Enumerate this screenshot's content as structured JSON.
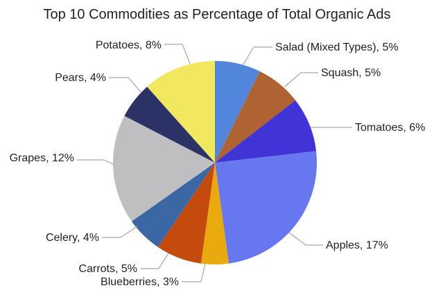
{
  "page": {
    "background_color": "#ffffff"
  },
  "chart_data": {
    "type": "pie",
    "title": "Top 10 Commodities as Percentage of Total Organic Ads",
    "unit": "%",
    "legend": "none",
    "start_angle_deg": 0,
    "direction": "clockwise",
    "label_style": "outside callouts with leader lines",
    "leader_line_color": "#a6a6a6",
    "text_color": "#1f1f1f",
    "slices": [
      {
        "label": "Salad (Mixed Types)",
        "value": 5,
        "callout": "Salad (Mixed Types), 5%",
        "color": "#5186dc"
      },
      {
        "label": "Squash",
        "value": 5,
        "callout": "Squash, 5%",
        "color": "#af6333"
      },
      {
        "label": "Tomatoes",
        "value": 6,
        "callout": "Tomatoes, 6%",
        "color": "#4134d6"
      },
      {
        "label": "Apples",
        "value": 17,
        "callout": "Apples, 17%",
        "color": "#6677f0"
      },
      {
        "label": "Blueberries",
        "value": 3,
        "callout": "Blueberries, 3%",
        "color": "#e9aa0e"
      },
      {
        "label": "Carrots",
        "value": 5,
        "callout": "Carrots, 5%",
        "color": "#c54a0d"
      },
      {
        "label": "Celery",
        "value": 4,
        "callout": "Celery, 4%",
        "color": "#3b67a4"
      },
      {
        "label": "Grapes",
        "value": 12,
        "callout": "Grapes, 12%",
        "color": "#bfbfc1"
      },
      {
        "label": "Pears",
        "value": 4,
        "callout": "Pears, 4%",
        "color": "#2a3266"
      },
      {
        "label": "Potatoes",
        "value": 8,
        "callout": "Potatoes, 8%",
        "color": "#f2e860"
      }
    ]
  }
}
